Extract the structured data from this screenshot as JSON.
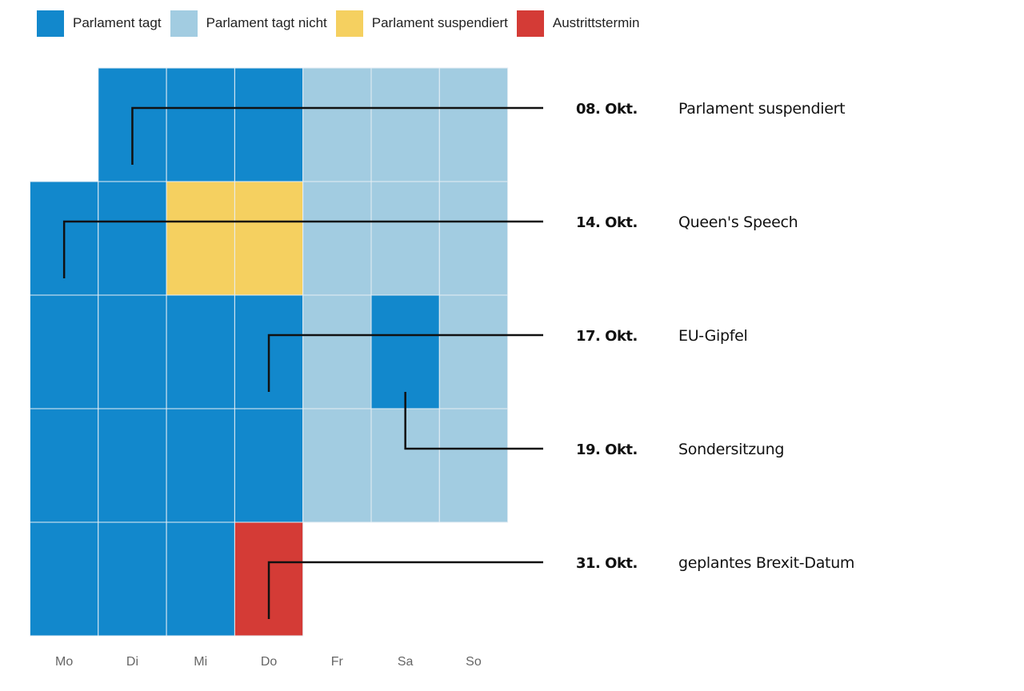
{
  "legend": [
    {
      "label": "Parlament tagt",
      "color": "#1288cc",
      "status": "sitting"
    },
    {
      "label": "Parlament tagt nicht",
      "color": "#a2cce1",
      "status": "not_sitting"
    },
    {
      "label": "Parlament suspendiert",
      "color": "#f5d060",
      "status": "suspended"
    },
    {
      "label": "Austrittstermin",
      "color": "#d43b36",
      "status": "exit"
    }
  ],
  "chart_data": {
    "type": "heatmap",
    "subtype": "calendar",
    "weekdays": [
      "Mo",
      "Di",
      "Mi",
      "Do",
      "Fr",
      "Sa",
      "So"
    ],
    "weeks": [
      [
        null,
        "sitting",
        "sitting",
        "sitting",
        "not_sitting",
        "not_sitting",
        "not_sitting"
      ],
      [
        "sitting",
        "sitting",
        "suspended",
        "suspended",
        "not_sitting",
        "not_sitting",
        "not_sitting"
      ],
      [
        "sitting",
        "sitting",
        "sitting",
        "sitting",
        "not_sitting",
        "sitting",
        "not_sitting"
      ],
      [
        "sitting",
        "sitting",
        "sitting",
        "sitting",
        "not_sitting",
        "not_sitting",
        "not_sitting"
      ],
      [
        "sitting",
        "sitting",
        "sitting",
        "exit",
        null,
        null,
        null
      ]
    ],
    "annotations": [
      {
        "date": "08. Okt.",
        "text": "Parlament suspendiert",
        "week": 0,
        "weekday": 1
      },
      {
        "date": "14. Okt.",
        "text": "Queen's Speech",
        "week": 1,
        "weekday": 0
      },
      {
        "date": "17. Okt.",
        "text": "EU-Gipfel",
        "week": 2,
        "weekday": 3
      },
      {
        "date": "19. Okt.",
        "text": "Sondersitzung",
        "week": 2,
        "weekday": 5
      },
      {
        "date": "31. Okt.",
        "text": "geplantes Brexit-Datum",
        "week": 4,
        "weekday": 3
      }
    ]
  }
}
